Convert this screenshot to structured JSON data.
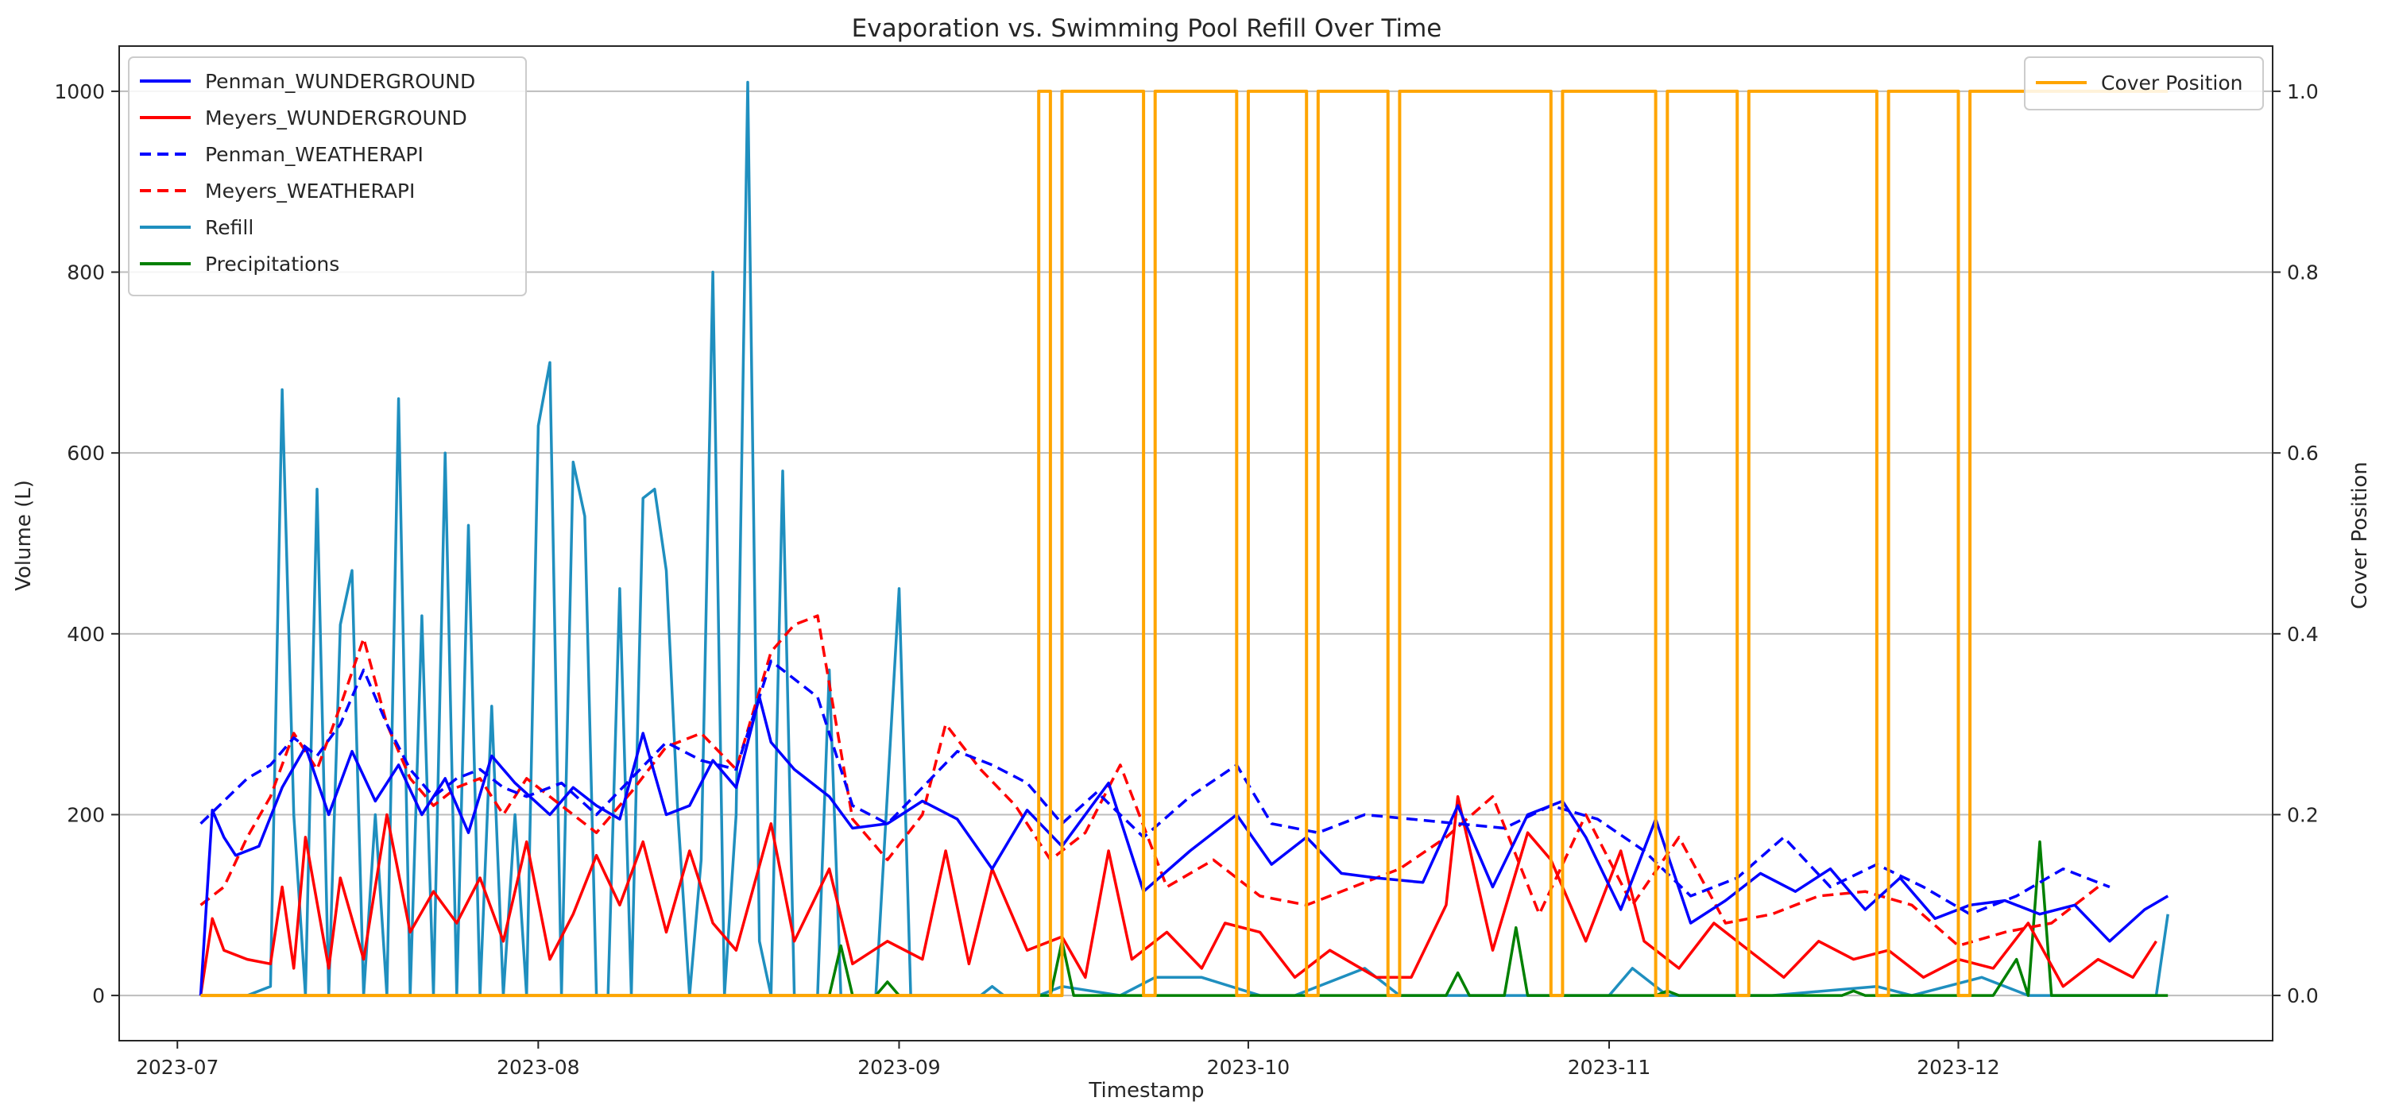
{
  "chart_data": {
    "type": "line",
    "title": "Evaporation vs. Swimming Pool Refill Over Time",
    "xlabel": "Timestamp",
    "ylabel": "Volume (L)",
    "y2label": "Cover Position",
    "x_range": [
      "2023-06-26",
      "2023-12-28"
    ],
    "ylim": [
      -50,
      1050
    ],
    "y2lim": [
      -0.05,
      1.05
    ],
    "xticks": [
      {
        "date": "2023-07-01",
        "label": "2023-07"
      },
      {
        "date": "2023-08-01",
        "label": "2023-08"
      },
      {
        "date": "2023-09-01",
        "label": "2023-09"
      },
      {
        "date": "2023-10-01",
        "label": "2023-10"
      },
      {
        "date": "2023-11-01",
        "label": "2023-11"
      },
      {
        "date": "2023-12-01",
        "label": "2023-12"
      }
    ],
    "yticks": [
      0,
      200,
      400,
      600,
      800,
      1000
    ],
    "y2ticks": [
      0.0,
      0.2,
      0.4,
      0.6,
      0.8,
      1.0
    ],
    "grid": "horizontal",
    "legend_left_position": "upper-left",
    "legend_right_position": "upper-right",
    "series": [
      {
        "name": "Penman_WUNDERGROUND",
        "axis": "left",
        "color": "#0000ff",
        "style": "solid",
        "x": [
          "2023-07-03",
          "2023-07-04",
          "2023-07-05",
          "2023-07-06",
          "2023-07-08",
          "2023-07-10",
          "2023-07-12",
          "2023-07-14",
          "2023-07-16",
          "2023-07-18",
          "2023-07-20",
          "2023-07-22",
          "2023-07-24",
          "2023-07-26",
          "2023-07-28",
          "2023-07-30",
          "2023-08-02",
          "2023-08-04",
          "2023-08-06",
          "2023-08-08",
          "2023-08-10",
          "2023-08-12",
          "2023-08-14",
          "2023-08-16",
          "2023-08-18",
          "2023-08-20",
          "2023-08-21",
          "2023-08-23",
          "2023-08-26",
          "2023-08-28",
          "2023-08-31",
          "2023-09-03",
          "2023-09-06",
          "2023-09-09",
          "2023-09-12",
          "2023-09-15",
          "2023-09-19",
          "2023-09-22",
          "2023-09-26",
          "2023-09-30",
          "2023-10-03",
          "2023-10-06",
          "2023-10-09",
          "2023-10-12",
          "2023-10-16",
          "2023-10-19",
          "2023-10-22",
          "2023-10-25",
          "2023-10-28",
          "2023-10-30",
          "2023-11-02",
          "2023-11-05",
          "2023-11-08",
          "2023-11-11",
          "2023-11-14",
          "2023-11-17",
          "2023-11-20",
          "2023-11-23",
          "2023-11-26",
          "2023-11-29",
          "2023-12-02",
          "2023-12-05",
          "2023-12-08",
          "2023-12-11",
          "2023-12-14",
          "2023-12-17",
          "2023-12-19"
        ],
        "y": [
          0,
          205,
          175,
          155,
          165,
          230,
          275,
          200,
          270,
          215,
          255,
          200,
          240,
          180,
          265,
          235,
          200,
          230,
          210,
          195,
          290,
          200,
          210,
          260,
          230,
          330,
          280,
          250,
          220,
          185,
          190,
          215,
          195,
          140,
          205,
          165,
          235,
          115,
          160,
          200,
          145,
          175,
          135,
          130,
          125,
          210,
          120,
          200,
          215,
          175,
          95,
          195,
          80,
          105,
          135,
          115,
          140,
          95,
          130,
          85,
          100,
          105,
          90,
          100,
          60,
          95,
          110
        ]
      },
      {
        "name": "Meyers_WUNDERGROUND",
        "axis": "left",
        "color": "#ff0000",
        "style": "solid",
        "x": [
          "2023-07-03",
          "2023-07-04",
          "2023-07-05",
          "2023-07-07",
          "2023-07-09",
          "2023-07-10",
          "2023-07-11",
          "2023-07-12",
          "2023-07-14",
          "2023-07-15",
          "2023-07-17",
          "2023-07-19",
          "2023-07-21",
          "2023-07-23",
          "2023-07-25",
          "2023-07-27",
          "2023-07-29",
          "2023-07-31",
          "2023-08-02",
          "2023-08-04",
          "2023-08-06",
          "2023-08-08",
          "2023-08-10",
          "2023-08-12",
          "2023-08-14",
          "2023-08-16",
          "2023-08-18",
          "2023-08-21",
          "2023-08-23",
          "2023-08-26",
          "2023-08-28",
          "2023-08-31",
          "2023-09-03",
          "2023-09-05",
          "2023-09-07",
          "2023-09-09",
          "2023-09-12",
          "2023-09-15",
          "2023-09-17",
          "2023-09-19",
          "2023-09-21",
          "2023-09-24",
          "2023-09-27",
          "2023-09-29",
          "2023-10-02",
          "2023-10-05",
          "2023-10-08",
          "2023-10-12",
          "2023-10-15",
          "2023-10-18",
          "2023-10-19",
          "2023-10-22",
          "2023-10-25",
          "2023-10-27",
          "2023-10-30",
          "2023-11-02",
          "2023-11-04",
          "2023-11-07",
          "2023-11-10",
          "2023-11-13",
          "2023-11-16",
          "2023-11-19",
          "2023-11-22",
          "2023-11-25",
          "2023-11-28",
          "2023-12-01",
          "2023-12-04",
          "2023-12-07",
          "2023-12-10",
          "2023-12-13",
          "2023-12-16",
          "2023-12-18"
        ],
        "y": [
          0,
          85,
          50,
          40,
          35,
          120,
          30,
          175,
          30,
          130,
          40,
          200,
          70,
          115,
          80,
          130,
          60,
          170,
          40,
          90,
          155,
          100,
          170,
          70,
          160,
          80,
          50,
          190,
          60,
          140,
          35,
          60,
          40,
          160,
          35,
          140,
          50,
          65,
          20,
          160,
          40,
          70,
          30,
          80,
          70,
          20,
          50,
          20,
          20,
          100,
          220,
          50,
          180,
          150,
          60,
          160,
          60,
          30,
          80,
          50,
          20,
          60,
          40,
          50,
          20,
          40,
          30,
          80,
          10,
          40,
          20,
          60
        ]
      },
      {
        "name": "Penman_WEATHERAPI",
        "axis": "left",
        "color": "#0000ff",
        "style": "dashed",
        "x": [
          "2023-07-03",
          "2023-07-05",
          "2023-07-07",
          "2023-07-09",
          "2023-07-11",
          "2023-07-13",
          "2023-07-15",
          "2023-07-17",
          "2023-07-19",
          "2023-07-21",
          "2023-07-23",
          "2023-07-25",
          "2023-07-27",
          "2023-07-29",
          "2023-07-31",
          "2023-08-03",
          "2023-08-06",
          "2023-08-09",
          "2023-08-12",
          "2023-08-15",
          "2023-08-18",
          "2023-08-21",
          "2023-08-23",
          "2023-08-25",
          "2023-08-28",
          "2023-08-31",
          "2023-09-03",
          "2023-09-06",
          "2023-09-09",
          "2023-09-12",
          "2023-09-15",
          "2023-09-18",
          "2023-09-22",
          "2023-09-26",
          "2023-09-30",
          "2023-10-03",
          "2023-10-07",
          "2023-10-11",
          "2023-10-15",
          "2023-10-19",
          "2023-10-23",
          "2023-10-27",
          "2023-10-31",
          "2023-11-04",
          "2023-11-08",
          "2023-11-12",
          "2023-11-16",
          "2023-11-20",
          "2023-11-24",
          "2023-11-28",
          "2023-12-02",
          "2023-12-06",
          "2023-12-10",
          "2023-12-14"
        ],
        "y": [
          190,
          215,
          240,
          255,
          285,
          265,
          300,
          360,
          300,
          250,
          220,
          240,
          250,
          230,
          220,
          235,
          200,
          240,
          280,
          260,
          250,
          370,
          350,
          330,
          210,
          190,
          230,
          270,
          255,
          235,
          190,
          225,
          175,
          220,
          255,
          190,
          180,
          200,
          195,
          190,
          185,
          210,
          195,
          160,
          110,
          130,
          175,
          120,
          145,
          120,
          90,
          110,
          140,
          120
        ]
      },
      {
        "name": "Meyers_WEATHERAPI",
        "axis": "left",
        "color": "#ff0000",
        "style": "dashed",
        "x": [
          "2023-07-03",
          "2023-07-05",
          "2023-07-07",
          "2023-07-09",
          "2023-07-11",
          "2023-07-13",
          "2023-07-15",
          "2023-07-17",
          "2023-07-19",
          "2023-07-21",
          "2023-07-23",
          "2023-07-25",
          "2023-07-27",
          "2023-07-29",
          "2023-07-31",
          "2023-08-03",
          "2023-08-06",
          "2023-08-09",
          "2023-08-12",
          "2023-08-15",
          "2023-08-18",
          "2023-08-21",
          "2023-08-23",
          "2023-08-25",
          "2023-08-28",
          "2023-08-31",
          "2023-09-03",
          "2023-09-05",
          "2023-09-08",
          "2023-09-11",
          "2023-09-14",
          "2023-09-17",
          "2023-09-20",
          "2023-09-24",
          "2023-09-28",
          "2023-10-02",
          "2023-10-06",
          "2023-10-10",
          "2023-10-14",
          "2023-10-18",
          "2023-10-22",
          "2023-10-26",
          "2023-10-30",
          "2023-11-03",
          "2023-11-07",
          "2023-11-11",
          "2023-11-15",
          "2023-11-19",
          "2023-11-23",
          "2023-11-27",
          "2023-12-01",
          "2023-12-05",
          "2023-12-09",
          "2023-12-13"
        ],
        "y": [
          100,
          120,
          175,
          220,
          290,
          250,
          320,
          395,
          300,
          240,
          210,
          230,
          240,
          200,
          240,
          210,
          180,
          225,
          275,
          290,
          250,
          380,
          410,
          420,
          195,
          150,
          200,
          300,
          250,
          210,
          150,
          180,
          255,
          120,
          150,
          110,
          100,
          120,
          140,
          175,
          220,
          90,
          200,
          100,
          175,
          80,
          90,
          110,
          115,
          100,
          55,
          70,
          80,
          120
        ]
      },
      {
        "name": "Refill",
        "axis": "left",
        "color": "#1f8fbf",
        "style": "solid",
        "x": [
          "2023-07-03",
          "2023-07-07",
          "2023-07-09",
          "2023-07-10",
          "2023-07-11",
          "2023-07-12",
          "2023-07-13",
          "2023-07-14",
          "2023-07-15",
          "2023-07-16",
          "2023-07-17",
          "2023-07-18",
          "2023-07-19",
          "2023-07-20",
          "2023-07-21",
          "2023-07-22",
          "2023-07-23",
          "2023-07-24",
          "2023-07-25",
          "2023-07-26",
          "2023-07-27",
          "2023-07-28",
          "2023-07-29",
          "2023-07-30",
          "2023-07-31",
          "2023-08-01",
          "2023-08-02",
          "2023-08-03",
          "2023-08-04",
          "2023-08-05",
          "2023-08-06",
          "2023-08-07",
          "2023-08-08",
          "2023-08-09",
          "2023-08-10",
          "2023-08-11",
          "2023-08-12",
          "2023-08-13",
          "2023-08-14",
          "2023-08-15",
          "2023-08-16",
          "2023-08-17",
          "2023-08-18",
          "2023-08-19",
          "2023-08-20",
          "2023-08-21",
          "2023-08-22",
          "2023-08-23",
          "2023-08-24",
          "2023-08-25",
          "2023-08-26",
          "2023-08-27",
          "2023-08-30",
          "2023-09-01",
          "2023-09-02",
          "2023-09-05",
          "2023-09-08",
          "2023-09-09",
          "2023-09-10",
          "2023-09-13",
          "2023-09-15",
          "2023-09-20",
          "2023-09-23",
          "2023-09-27",
          "2023-10-02",
          "2023-10-05",
          "2023-10-11",
          "2023-10-14",
          "2023-10-21",
          "2023-10-28",
          "2023-11-01",
          "2023-11-03",
          "2023-11-06",
          "2023-11-15",
          "2023-11-24",
          "2023-11-27",
          "2023-12-03",
          "2023-12-07",
          "2023-12-12",
          "2023-12-18",
          "2023-12-19"
        ],
        "y": [
          0,
          0,
          10,
          670,
          200,
          0,
          560,
          0,
          410,
          470,
          0,
          200,
          0,
          660,
          0,
          420,
          0,
          600,
          0,
          520,
          0,
          320,
          0,
          200,
          0,
          630,
          700,
          0,
          590,
          530,
          0,
          0,
          450,
          0,
          550,
          560,
          470,
          200,
          0,
          150,
          800,
          0,
          200,
          1010,
          60,
          0,
          580,
          0,
          0,
          0,
          360,
          0,
          0,
          450,
          0,
          0,
          0,
          10,
          0,
          0,
          10,
          0,
          20,
          20,
          0,
          0,
          30,
          0,
          0,
          0,
          0,
          30,
          0,
          0,
          10,
          0,
          20,
          0,
          0,
          0,
          90
        ]
      },
      {
        "name": "Precipitations",
        "axis": "left",
        "color": "#008000",
        "style": "solid",
        "x": [
          "2023-07-03",
          "2023-08-26",
          "2023-08-27",
          "2023-08-28",
          "2023-08-30",
          "2023-08-31",
          "2023-09-01",
          "2023-09-14",
          "2023-09-15",
          "2023-09-16",
          "2023-10-18",
          "2023-10-19",
          "2023-10-20",
          "2023-10-23",
          "2023-10-24",
          "2023-10-25",
          "2023-11-05",
          "2023-11-06",
          "2023-11-07",
          "2023-11-21",
          "2023-11-22",
          "2023-11-23",
          "2023-12-04",
          "2023-12-06",
          "2023-12-07",
          "2023-12-08",
          "2023-12-09",
          "2023-12-19"
        ],
        "y": [
          0,
          0,
          55,
          0,
          0,
          15,
          0,
          0,
          60,
          0,
          0,
          25,
          0,
          0,
          75,
          0,
          0,
          5,
          0,
          0,
          5,
          0,
          0,
          40,
          0,
          170,
          0,
          0
        ]
      },
      {
        "name": "Cover Position",
        "axis": "right",
        "color": "#ffa500",
        "style": "solid",
        "kind": "step",
        "x": [
          "2023-07-03",
          "2023-09-13",
          "2023-09-14",
          "2023-09-15",
          "2023-09-22",
          "2023-09-23",
          "2023-09-30",
          "2023-10-01",
          "2023-10-06",
          "2023-10-07",
          "2023-10-13",
          "2023-10-14",
          "2023-10-27",
          "2023-10-28",
          "2023-11-05",
          "2023-11-06",
          "2023-11-12",
          "2023-11-13",
          "2023-11-24",
          "2023-11-25",
          "2023-12-01",
          "2023-12-02",
          "2023-12-19"
        ],
        "y": [
          0,
          1,
          0,
          1,
          0,
          1,
          0,
          1,
          0,
          1,
          0,
          1,
          0,
          1,
          0,
          1,
          0,
          1,
          0,
          1,
          0,
          1,
          1
        ]
      }
    ]
  }
}
